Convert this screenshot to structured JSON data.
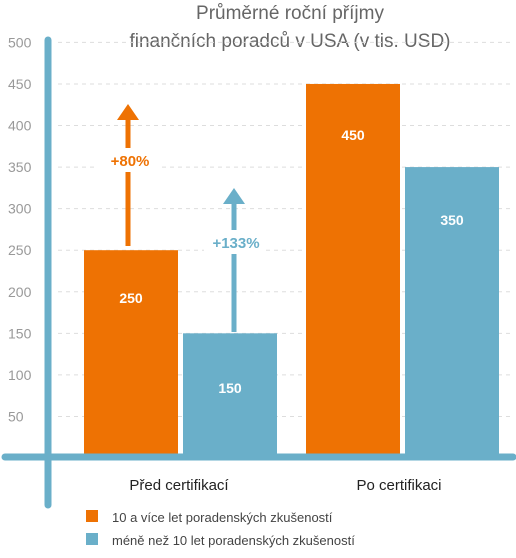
{
  "chart_data": {
    "type": "bar",
    "title_lines": [
      "Průměrné roční příjmy",
      "finančních poradců v USA (v tis. USD)"
    ],
    "categories": [
      "Před certifikací",
      "Po certifikaci"
    ],
    "series": [
      {
        "name": "10 a více let poradenských zkušeností",
        "values": [
          250,
          450
        ],
        "color": "#EE7203"
      },
      {
        "name": "méně než 10 let poradenských zkušeností",
        "values": [
          150,
          350
        ],
        "color": "#6AAFC9"
      }
    ],
    "data_labels": [
      [
        "250",
        "450"
      ],
      [
        "150",
        "350"
      ]
    ],
    "y_ticks": [
      "50",
      "100",
      "150",
      "200",
      "250",
      "300",
      "350",
      "400",
      "450",
      "500"
    ],
    "ylim": [
      0,
      500
    ],
    "grid": "dashed",
    "legend_position": "bottom-left",
    "annotations": [
      {
        "text": "+80%",
        "series": 0,
        "color": "#EE7203"
      },
      {
        "text": "+133%",
        "series": 1,
        "color": "#6AAFC9"
      }
    ],
    "axis_color": "#6AAFC9",
    "tick_label_color": "#999999",
    "title_color": "#666666"
  }
}
